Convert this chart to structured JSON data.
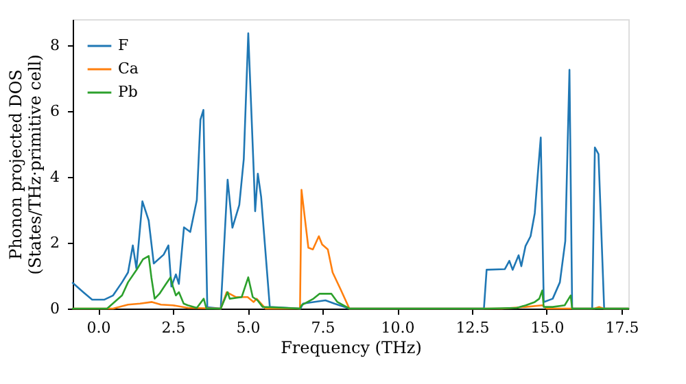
{
  "chart_data": {
    "type": "line",
    "xlabel": "Frequency (THz)",
    "ylabel": "Phonon projected DOS\n(States/THz·primitive cell)",
    "xlim": [
      -0.85,
      17.73
    ],
    "ylim": [
      0,
      8.8
    ],
    "xticks": [
      {
        "value": 0,
        "label": "0.0"
      },
      {
        "value": 2.5,
        "label": "2.5"
      },
      {
        "value": 5,
        "label": "5.0"
      },
      {
        "value": 7.5,
        "label": "7.5"
      },
      {
        "value": 10,
        "label": "10.0"
      },
      {
        "value": 12.5,
        "label": "12.5"
      },
      {
        "value": 15,
        "label": "15.0"
      },
      {
        "value": 17.5,
        "label": "17.5"
      }
    ],
    "yticks": [
      0,
      2,
      4,
      6,
      8
    ],
    "grid": false,
    "legend": "top left",
    "line_style": "solid",
    "marker": "none",
    "series": [
      {
        "name": "F",
        "color": "#1f77b4",
        "x": [
          -0.85,
          -0.5,
          -0.2,
          0.2,
          0.5,
          0.8,
          1.0,
          1.16,
          1.28,
          1.48,
          1.69,
          1.86,
          2.19,
          2.35,
          2.45,
          2.6,
          2.7,
          2.87,
          3.08,
          3.3,
          3.42,
          3.52,
          3.65,
          4.1,
          4.33,
          4.49,
          4.72,
          4.87,
          5.02,
          5.21,
          5.25,
          5.34,
          5.45,
          5.74,
          6.77,
          6.85,
          7.2,
          7.6,
          7.9,
          8.4,
          12.9,
          12.99,
          13.6,
          13.75,
          13.86,
          14.06,
          14.15,
          14.29,
          14.46,
          14.6,
          14.72,
          14.8,
          14.9,
          15.2,
          15.44,
          15.62,
          15.76,
          15.85,
          16.52,
          16.61,
          16.73,
          16.92,
          17.73
        ],
        "values": [
          0.78,
          0.5,
          0.27,
          0.27,
          0.4,
          0.8,
          1.1,
          1.92,
          1.22,
          3.26,
          2.68,
          1.37,
          1.64,
          1.92,
          0.67,
          1.04,
          0.75,
          2.47,
          2.33,
          3.3,
          5.74,
          6.04,
          0.04,
          0.0,
          3.92,
          2.46,
          3.15,
          4.55,
          8.37,
          4.0,
          2.96,
          4.1,
          3.4,
          0.05,
          0.0,
          0.15,
          0.2,
          0.25,
          0.15,
          0.0,
          0.0,
          1.18,
          1.2,
          1.45,
          1.18,
          1.62,
          1.29,
          1.9,
          2.2,
          2.9,
          4.3,
          5.2,
          0.2,
          0.3,
          0.8,
          2.05,
          7.26,
          0.0,
          0.0,
          4.9,
          4.7,
          0.0,
          0.0
        ]
      },
      {
        "name": "Ca",
        "color": "#ff7f0e",
        "x": [
          -0.85,
          0.5,
          1.0,
          1.4,
          1.8,
          2.1,
          2.5,
          3.0,
          4.1,
          4.3,
          4.6,
          5.0,
          5.2,
          5.3,
          5.6,
          6.75,
          6.8,
          7.03,
          7.18,
          7.38,
          7.49,
          7.68,
          7.84,
          8.1,
          8.4,
          13.5,
          14.3,
          14.85,
          15.0,
          16.6,
          16.75,
          16.9,
          17.73
        ],
        "values": [
          0.0,
          0.0,
          0.12,
          0.15,
          0.2,
          0.12,
          0.1,
          0.02,
          0.0,
          0.5,
          0.35,
          0.35,
          0.2,
          0.3,
          0.0,
          0.0,
          3.61,
          1.85,
          1.8,
          2.2,
          1.95,
          1.8,
          1.1,
          0.6,
          0.0,
          0.0,
          0.05,
          0.1,
          0.0,
          0.0,
          0.05,
          0.0,
          0.0
        ]
      },
      {
        "name": "Pb",
        "color": "#2ca02c",
        "x": [
          -0.85,
          0.3,
          0.8,
          1.0,
          1.3,
          1.5,
          1.69,
          1.78,
          1.89,
          2.05,
          2.27,
          2.42,
          2.5,
          2.6,
          2.7,
          2.86,
          3.0,
          3.3,
          3.53,
          3.62,
          4.1,
          4.33,
          4.4,
          4.8,
          5.02,
          5.17,
          5.33,
          5.5,
          6.75,
          6.8,
          7.2,
          7.4,
          7.8,
          8.0,
          8.4,
          13.0,
          14.0,
          14.3,
          14.6,
          14.75,
          14.85,
          14.9,
          15.2,
          15.6,
          15.8,
          15.85,
          17.73
        ],
        "values": [
          0.0,
          0.0,
          0.4,
          0.8,
          1.2,
          1.5,
          1.6,
          0.95,
          0.3,
          0.45,
          0.75,
          0.95,
          0.67,
          0.4,
          0.5,
          0.15,
          0.1,
          0.02,
          0.3,
          0.0,
          0.0,
          0.5,
          0.3,
          0.35,
          0.95,
          0.35,
          0.25,
          0.05,
          0.0,
          0.1,
          0.3,
          0.45,
          0.45,
          0.2,
          0.0,
          0.0,
          0.02,
          0.1,
          0.2,
          0.3,
          0.55,
          0.05,
          0.05,
          0.1,
          0.4,
          0.0,
          0.0
        ]
      }
    ]
  }
}
